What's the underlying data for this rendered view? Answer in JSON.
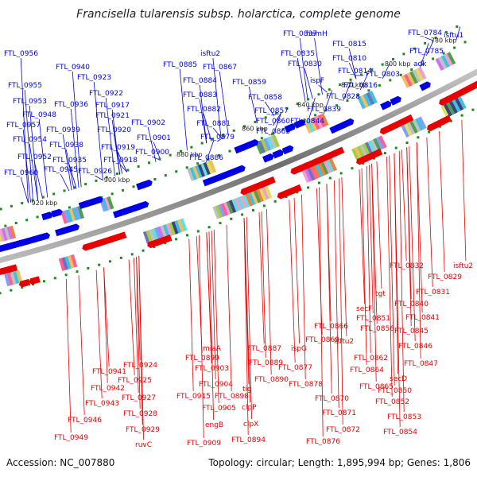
{
  "title": "Francisella tularensis subsp. holarctica, complete genome",
  "footer": {
    "accession": "Accession: NC_007880",
    "summary": "Topology: circular; Length: 1,895,994 bp; Genes: 1,806"
  },
  "colors": {
    "forward_strand": "#0000e6",
    "reverse_strand": "#e60000",
    "backbone": "#8a8a8a",
    "tick": "#1e8a1e"
  },
  "scale_labels": [
    "780 kbp",
    "800 kbp",
    "820 kbp",
    "840 kbp",
    "860 kbp",
    "880 kbp",
    "900 kbp",
    "920 kbp"
  ],
  "forward_labels": [
    "FTL_0956",
    "FTL_0955",
    "FTL_0953",
    "FTL_0948",
    "FTL_0957",
    "FTL_0954",
    "FTL_0952",
    "FTL_0960",
    "FTL_0940",
    "FTL_0936",
    "FTL_0939",
    "FTL_0938",
    "FTL_0935",
    "FTL_0945",
    "FTL_0923",
    "FTL_0922",
    "FTL_0917",
    "FTL_0921",
    "FTL_0920",
    "FTL_0919",
    "FTL_0918",
    "FTL_0926",
    "FTL_0902",
    "FTL_0901",
    "FTL_0900",
    "FTL_0885",
    "FTL_0884",
    "FTL_0883",
    "FTL_0882",
    "FTL_0881",
    "FTL_0879",
    "FTL_0886",
    "isftu2",
    "FTL_0867",
    "FTL_0859",
    "FTL_0858",
    "FTL_0857",
    "FTL_0860",
    "FTL_0863",
    "FTL_0837",
    "FTL_0835",
    "FTL_0830",
    "hemH",
    "FTL_0815",
    "FTL_0810",
    "FTL_0814",
    "ispF",
    "FTL_0816",
    "FTL_0828",
    "FTL_0839",
    "FTL_0844",
    "FTL_0784",
    "isftu1",
    "FTL_0785",
    "adk",
    "FTL_0803"
  ],
  "reverse_labels": [
    "FTL_0941",
    "FTL_0942",
    "FTL_0943",
    "FTL_0946",
    "FTL_0949",
    "FTL_0924",
    "FTL_0925",
    "FTL_0927",
    "FTL_0928",
    "FTL_0929",
    "ruvC",
    "miaA",
    "FTL_0899",
    "FTL_0903",
    "FTL_0904",
    "FTL_0905",
    "FTL_0915",
    "FTL_0898",
    "engB",
    "FTL_0909",
    "FTL_0887",
    "FTL_0889",
    "FTL_0890",
    "tig",
    "clpP",
    "clpX",
    "FTL_0894",
    "FTL_0866",
    "FTL_0869",
    "ispG",
    "FTL_0877",
    "FTL_0878",
    "FTL_0870",
    "FTL_0871",
    "FTL_0872",
    "FTL_0876",
    "secF",
    "FTL_0851",
    "FTL_0856",
    "isftu2",
    "FTL_0862",
    "FTL_0864",
    "FTL_0865",
    "tgt",
    "FTL_0840",
    "FTL_0841",
    "FTL_0845",
    "FTL_0846",
    "FTL_0847",
    "secD",
    "FTL_0850",
    "FTL_0852",
    "FTL_0853",
    "FTL_0854",
    "FTL_0832",
    "isftu2",
    "FTL_0829",
    "FTL_0831"
  ]
}
